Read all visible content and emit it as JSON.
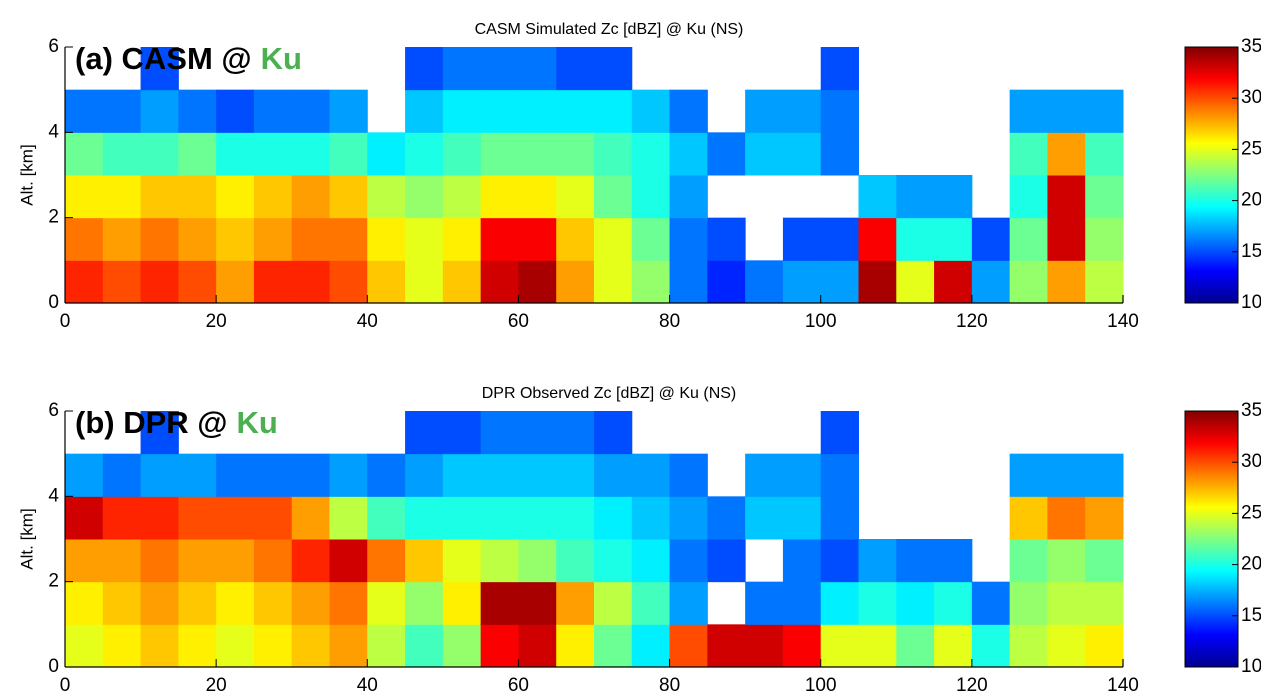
{
  "chart_data": [
    {
      "type": "heatmap",
      "title": "CASM Simulated Zc [dBZ] @ Ku (NS)",
      "panel_label": "(a) CASM @",
      "panel_label_accent": "Ku",
      "accent_color": "#4caf50",
      "ylabel": "Alt. [km]",
      "xlim": [
        0,
        140
      ],
      "ylim": [
        0,
        6
      ],
      "xticks": [
        0,
        20,
        40,
        60,
        80,
        100,
        120,
        140
      ],
      "yticks": [
        0,
        2,
        4,
        6
      ],
      "xbins": [
        0,
        5,
        10,
        15,
        20,
        25,
        30,
        35,
        40,
        45,
        50,
        55,
        60,
        65,
        70,
        75,
        80,
        85,
        90,
        95,
        100,
        105,
        110,
        115,
        120,
        125,
        130,
        135,
        140
      ],
      "ybins": [
        0,
        1,
        2,
        3,
        4,
        5,
        6
      ],
      "colormap": "jet",
      "clim": [
        10,
        35
      ],
      "cticks": [
        10,
        15,
        20,
        25,
        30,
        35
      ],
      "values": [
        [
          31,
          29,
          26,
          22,
          16,
          null
        ],
        [
          30,
          28,
          26,
          21,
          16,
          null
        ],
        [
          31,
          29,
          27,
          21,
          17,
          15
        ],
        [
          30,
          28,
          27,
          22,
          16,
          null
        ],
        [
          28,
          27,
          26,
          20,
          15,
          null
        ],
        [
          31,
          28,
          27,
          20,
          16,
          null
        ],
        [
          31,
          29,
          28,
          20,
          16,
          null
        ],
        [
          30,
          29,
          27,
          21,
          17,
          null
        ],
        [
          27,
          26,
          24,
          19,
          null,
          null
        ],
        [
          25,
          25,
          23,
          20,
          18,
          15
        ],
        [
          27,
          26,
          24,
          21,
          19,
          16
        ],
        [
          33,
          32,
          26,
          22,
          19,
          16
        ],
        [
          34,
          32,
          26,
          22,
          19,
          16
        ],
        [
          28,
          27,
          25,
          22,
          19,
          15
        ],
        [
          25,
          25,
          22,
          21,
          19,
          15
        ],
        [
          23,
          22,
          20,
          20,
          18,
          null
        ],
        [
          16,
          16,
          17,
          18,
          16,
          null
        ],
        [
          14,
          15,
          null,
          16,
          null,
          null
        ],
        [
          16,
          null,
          null,
          18,
          17,
          null
        ],
        [
          17,
          15,
          null,
          18,
          17,
          null
        ],
        [
          17,
          15,
          null,
          16,
          16,
          15
        ],
        [
          34,
          32,
          18,
          null,
          null,
          null
        ],
        [
          25,
          20,
          17,
          null,
          null,
          null
        ],
        [
          33,
          20,
          17,
          null,
          null,
          null
        ],
        [
          17,
          15,
          null,
          null,
          null,
          null
        ],
        [
          23,
          22,
          20,
          21,
          17,
          null
        ],
        [
          28,
          33,
          33,
          28,
          17,
          null
        ],
        [
          24,
          23,
          22,
          21,
          17,
          null
        ]
      ]
    },
    {
      "type": "heatmap",
      "title": "DPR Observed Zc [dBZ] @ Ku (NS)",
      "panel_label": "(b) DPR @",
      "panel_label_accent": "Ku",
      "accent_color": "#4caf50",
      "ylabel": "Alt. [km]",
      "xlim": [
        0,
        140
      ],
      "ylim": [
        0,
        6
      ],
      "xticks": [
        0,
        20,
        40,
        60,
        80,
        100,
        120,
        140
      ],
      "yticks": [
        0,
        2,
        4,
        6
      ],
      "xbins": [
        0,
        5,
        10,
        15,
        20,
        25,
        30,
        35,
        40,
        45,
        50,
        55,
        60,
        65,
        70,
        75,
        80,
        85,
        90,
        95,
        100,
        105,
        110,
        115,
        120,
        125,
        130,
        135,
        140
      ],
      "ybins": [
        0,
        1,
        2,
        3,
        4,
        5,
        6
      ],
      "colormap": "jet",
      "clim": [
        10,
        35
      ],
      "cticks": [
        10,
        15,
        20,
        25,
        30,
        35
      ],
      "values": [
        [
          25,
          26,
          28,
          33,
          17,
          null
        ],
        [
          26,
          27,
          28,
          31,
          16,
          null
        ],
        [
          27,
          28,
          29,
          31,
          17,
          15
        ],
        [
          26,
          27,
          28,
          30,
          17,
          null
        ],
        [
          25,
          26,
          28,
          30,
          16,
          null
        ],
        [
          26,
          27,
          29,
          30,
          16,
          null
        ],
        [
          27,
          28,
          31,
          28,
          16,
          null
        ],
        [
          28,
          29,
          33,
          24,
          17,
          null
        ],
        [
          24,
          25,
          29,
          21,
          16,
          null
        ],
        [
          21,
          23,
          27,
          20,
          17,
          15
        ],
        [
          23,
          26,
          25,
          20,
          18,
          15
        ],
        [
          32,
          34,
          24,
          20,
          18,
          16
        ],
        [
          33,
          34,
          23,
          20,
          18,
          16
        ],
        [
          26,
          28,
          21,
          20,
          18,
          16
        ],
        [
          22,
          24,
          20,
          19,
          17,
          15
        ],
        [
          19,
          21,
          19,
          18,
          17,
          null
        ],
        [
          30,
          17,
          16,
          17,
          16,
          null
        ],
        [
          33,
          null,
          15,
          16,
          null,
          null
        ],
        [
          33,
          16,
          null,
          18,
          17,
          null
        ],
        [
          32,
          16,
          16,
          18,
          17,
          null
        ],
        [
          25,
          19,
          15,
          16,
          16,
          15
        ],
        [
          25,
          20,
          17,
          null,
          null,
          null
        ],
        [
          22,
          19,
          16,
          null,
          null,
          null
        ],
        [
          25,
          20,
          16,
          null,
          null,
          null
        ],
        [
          20,
          16,
          null,
          null,
          null,
          null
        ],
        [
          24,
          23,
          22,
          27,
          17,
          null
        ],
        [
          25,
          24,
          23,
          29,
          17,
          null
        ],
        [
          26,
          24,
          22,
          28,
          17,
          null
        ]
      ]
    }
  ]
}
